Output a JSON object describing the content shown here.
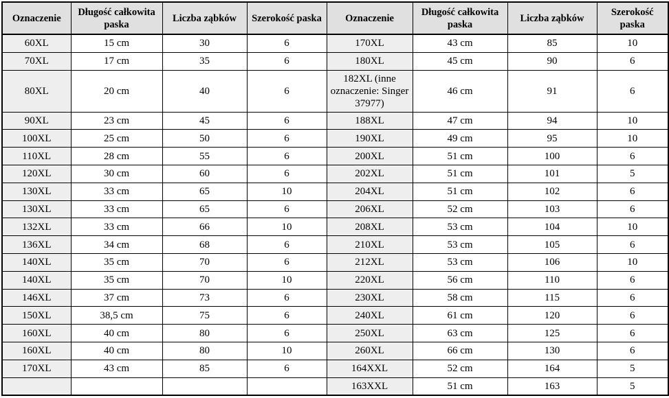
{
  "headers": [
    "Oznaczenie",
    "Długość całkowita paska",
    "Liczba ząbków",
    "Szerokość paska",
    "Oznaczenie",
    "Długość całkowita paska",
    "Liczba ząbków",
    "Szerokość paska"
  ],
  "rows": [
    [
      "60XL",
      "15 cm",
      "30",
      "6",
      "170XL",
      "43 cm",
      "85",
      "10"
    ],
    [
      "70XL",
      "17 cm",
      "35",
      "6",
      "180XL",
      "45 cm",
      "90",
      "6"
    ],
    [
      "80XL",
      "20 cm",
      "40",
      "6",
      "182XL (inne oznaczenie: Singer 37977)",
      "46 cm",
      "91",
      "6"
    ],
    [
      "90XL",
      "23 cm",
      "45",
      "6",
      "188XL",
      "47 cm",
      "94",
      "10"
    ],
    [
      "100XL",
      "25 cm",
      "50",
      "6",
      "190XL",
      "49 cm",
      "95",
      "10"
    ],
    [
      "110XL",
      "28 cm",
      "55",
      "6",
      "200XL",
      "51 cm",
      "100",
      "6"
    ],
    [
      "120XL",
      "30 cm",
      "60",
      "6",
      "202XL",
      "51 cm",
      "101",
      "5"
    ],
    [
      "130XL",
      "33 cm",
      "65",
      "10",
      "204XL",
      "51 cm",
      "102",
      "6"
    ],
    [
      "130XL",
      "33 cm",
      "65",
      "6",
      "206XL",
      "52 cm",
      "103",
      "6"
    ],
    [
      "132XL",
      "33 cm",
      "66",
      "10",
      "208XL",
      "53 cm",
      "104",
      "10"
    ],
    [
      "136XL",
      "34 cm",
      "68",
      "6",
      "210XL",
      "53 cm",
      "105",
      "6"
    ],
    [
      "140XL",
      "35 cm",
      "70",
      "6",
      "212XL",
      "53 cm",
      "106",
      "10"
    ],
    [
      "140XL",
      "35 cm",
      "70",
      "10",
      "220XL",
      "56 cm",
      "110",
      "6"
    ],
    [
      "146XL",
      "37 cm",
      "73",
      "6",
      "230XL",
      "58 cm",
      "115",
      "6"
    ],
    [
      "150XL",
      "38,5 cm",
      "75",
      "6",
      "240XL",
      "61 cm",
      "120",
      "6"
    ],
    [
      "160XL",
      "40 cm",
      "80",
      "6",
      "250XL",
      "63 cm",
      "125",
      "6"
    ],
    [
      "160XL",
      "40 cm",
      "80",
      "10",
      "260XL",
      "66 cm",
      "130",
      "6"
    ],
    [
      "170XL",
      "43 cm",
      "85",
      "6",
      "164XXL",
      "52 cm",
      "164",
      "5"
    ],
    [
      "",
      "",
      "",
      "",
      "163XXL",
      "51 cm",
      "163",
      "5"
    ]
  ]
}
